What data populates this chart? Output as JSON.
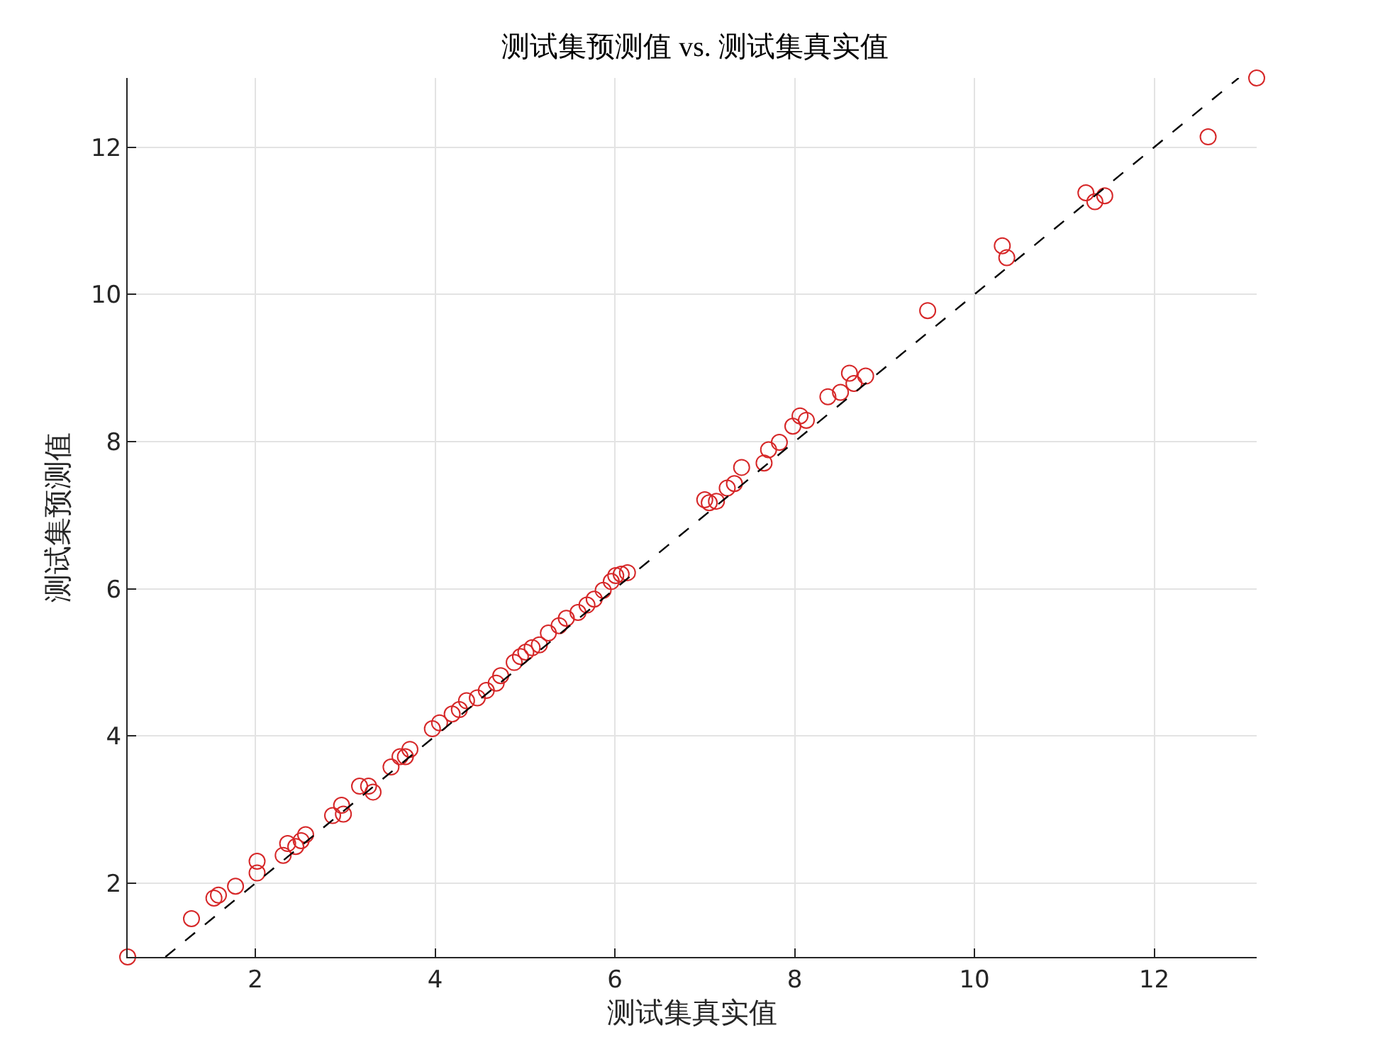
{
  "chart_data": {
    "type": "scatter",
    "title": "测试集预测值 vs. 测试集真实值",
    "xlabel": "测试集真实值",
    "ylabel": "测试集预测值",
    "xlim": [
      0.58,
      13.14
    ],
    "ylim": [
      1.0,
      12.94
    ],
    "xticks": [
      2,
      4,
      6,
      8,
      10,
      12
    ],
    "yticks": [
      2,
      4,
      6,
      8,
      10,
      12
    ],
    "grid": true,
    "series": [
      {
        "marker": "circle",
        "color": "#d62728",
        "x": [
          0.58,
          1.29,
          1.54,
          1.59,
          1.78,
          2.02,
          2.02,
          2.31,
          2.36,
          2.45,
          2.51,
          2.56,
          2.86,
          2.96,
          2.98,
          3.16,
          3.26,
          3.31,
          3.51,
          3.61,
          3.67,
          3.72,
          3.97,
          4.05,
          4.19,
          4.27,
          4.35,
          4.47,
          4.57,
          4.68,
          4.73,
          4.88,
          4.95,
          5.01,
          5.08,
          5.16,
          5.26,
          5.38,
          5.46,
          5.59,
          5.69,
          5.77,
          5.87,
          5.96,
          6.01,
          6.07,
          6.14,
          7.0,
          7.05,
          7.13,
          7.25,
          7.33,
          7.41,
          7.66,
          7.71,
          7.83,
          7.98,
          8.06,
          8.13,
          8.37,
          8.51,
          8.61,
          8.66,
          8.79,
          9.48,
          10.31,
          10.36,
          11.24,
          11.34,
          11.45,
          12.6,
          13.14
        ],
        "values": [
          1.0,
          1.52,
          1.8,
          1.84,
          1.96,
          2.14,
          2.3,
          2.38,
          2.54,
          2.5,
          2.58,
          2.66,
          2.92,
          3.06,
          2.94,
          3.32,
          3.32,
          3.24,
          3.58,
          3.72,
          3.72,
          3.82,
          4.1,
          4.18,
          4.3,
          4.36,
          4.48,
          4.52,
          4.62,
          4.72,
          4.82,
          5.0,
          5.08,
          5.14,
          5.2,
          5.24,
          5.4,
          5.5,
          5.6,
          5.68,
          5.78,
          5.86,
          5.98,
          6.1,
          6.18,
          6.2,
          6.22,
          7.21,
          7.17,
          7.19,
          7.37,
          7.43,
          7.65,
          7.71,
          7.89,
          7.99,
          8.21,
          8.35,
          8.29,
          8.61,
          8.67,
          8.93,
          8.79,
          8.89,
          9.78,
          10.66,
          10.5,
          11.38,
          11.26,
          11.34,
          12.14,
          12.94
        ]
      },
      {
        "type": "line",
        "marker": "none",
        "line_style": "dashed",
        "color": "#000000",
        "x": [
          1.0,
          12.94
        ],
        "values": [
          1.0,
          12.94
        ]
      }
    ]
  }
}
